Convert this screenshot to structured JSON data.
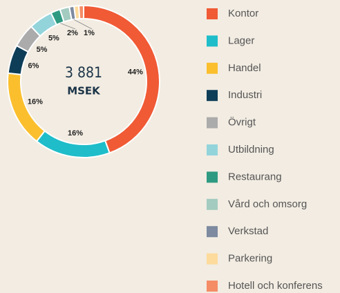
{
  "chart_data": {
    "type": "donut",
    "center_value": "3 881",
    "center_unit": "MSEK",
    "categories": [
      "Kontor",
      "Lager",
      "Handel",
      "Industri",
      "Övrigt",
      "Utbildning",
      "Restaurang",
      "Vård och omsorg",
      "Verkstad",
      "Parkering",
      "Hotell och konferens"
    ],
    "values": [
      44,
      16,
      16,
      6,
      5,
      5,
      2,
      2,
      1,
      1,
      1
    ],
    "value_labels": [
      "44%",
      "16%",
      "16%",
      "6%",
      "5%",
      "5%",
      "2%",
      null,
      "1%",
      null,
      null
    ],
    "colors": [
      "#f05a35",
      "#1ebdc9",
      "#fbbf2e",
      "#0e3d57",
      "#acabab",
      "#93d4db",
      "#2e9a82",
      "#a3cbc0",
      "#7d8aa0",
      "#fddb9c",
      "#f48c66"
    ],
    "legend": "right"
  }
}
